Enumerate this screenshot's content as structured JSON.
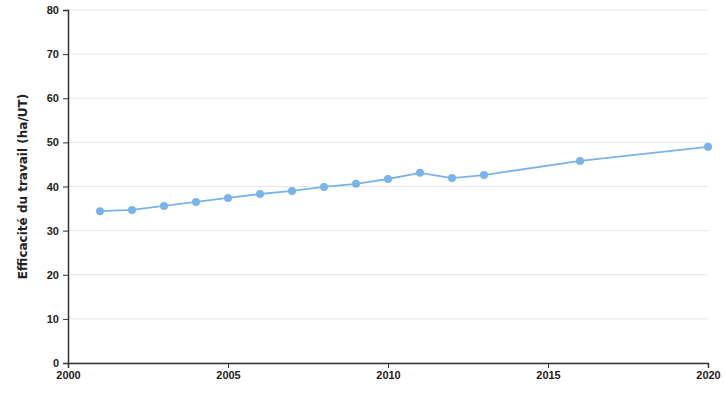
{
  "chart_data": {
    "type": "line",
    "y_label": "Efficacité du travail (ha/UT)",
    "x": [
      2001,
      2002,
      2003,
      2004,
      2005,
      2006,
      2007,
      2008,
      2009,
      2010,
      2011,
      2012,
      2013,
      2016,
      2020
    ],
    "values": [
      34.4,
      34.7,
      35.6,
      36.5,
      37.4,
      38.3,
      39.0,
      39.9,
      40.6,
      41.7,
      43.1,
      41.9,
      42.6,
      45.8,
      49.0
    ],
    "color": "#7ab3e8",
    "marker": "circle",
    "xlim": [
      2000,
      2020
    ],
    "xticks": [
      2000,
      2005,
      2010,
      2015,
      2020
    ],
    "ylim": [
      0,
      80
    ],
    "yticks": [
      0,
      10,
      20,
      30,
      40,
      50,
      60,
      70,
      80
    ],
    "grid": true
  }
}
